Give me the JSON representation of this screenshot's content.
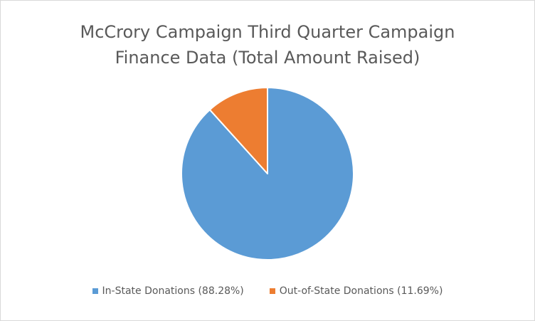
{
  "chart_data": {
    "type": "pie",
    "title_lines": [
      "McCrory Campaign Third Quarter Campaign",
      "Finance Data (Total Amount Raised)"
    ],
    "slices": [
      {
        "label": "In-State Donations (88.28%)",
        "value": 88.28,
        "color": "#5b9bd5"
      },
      {
        "label": "Out-of-State Donations (11.69%)",
        "value": 11.69,
        "color": "#ed7d31"
      }
    ],
    "legend_position": "bottom"
  }
}
